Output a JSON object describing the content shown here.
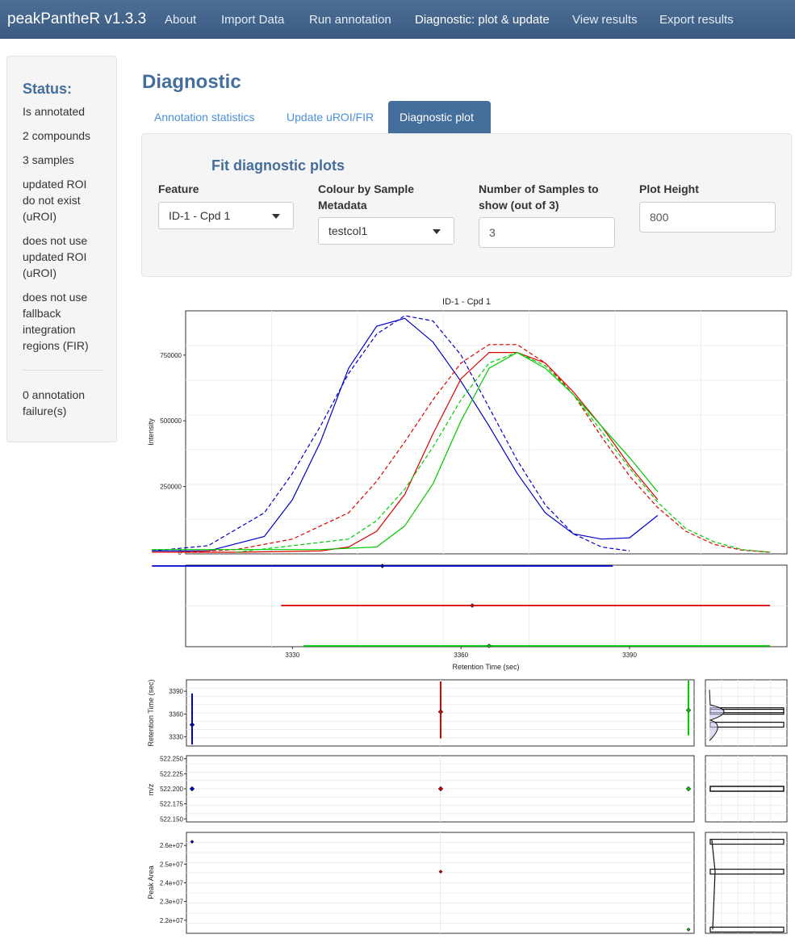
{
  "navbar": {
    "brand": "peakPantheR v1.3.3",
    "items": [
      {
        "label": "About"
      },
      {
        "label": "Import Data"
      },
      {
        "label": "Run annotation"
      },
      {
        "label": "Diagnostic: plot & update"
      },
      {
        "label": "View results"
      },
      {
        "label": "Export results"
      }
    ],
    "active": "Diagnostic: plot & update"
  },
  "sidebar": {
    "title": "Status:",
    "lines": [
      "Is annotated",
      "2 compounds",
      "3 samples",
      "updated ROI do not exist (uROI)",
      "does not use updated ROI (uROI)",
      "does not use fallback integration regions (FIR)",
      "0 annotation failure(s)"
    ]
  },
  "main": {
    "title": "Diagnostic",
    "tabs": [
      {
        "label": "Annotation statistics"
      },
      {
        "label": "Update uROI/FIR"
      },
      {
        "label": "Diagnostic plot"
      }
    ],
    "active_tab": "Diagnostic plot",
    "panel": {
      "title": "Fit diagnostic plots",
      "feature": {
        "label": "Feature",
        "value": "ID-1 - Cpd 1"
      },
      "colour": {
        "label": "Colour by Sample Metadata",
        "value": "testcol1"
      },
      "nsamples": {
        "label": "Number of Samples to show (out of 3)",
        "value": "3"
      },
      "height": {
        "label": "Plot Height",
        "value": "800"
      }
    }
  },
  "colors": {
    "accent": "#446e9b",
    "sample_1": "#0000cc",
    "sample_2": "#dd0000",
    "sample_3": "#00cc00"
  },
  "chart_data": [
    {
      "type": "line",
      "title": "ID-1 - Cpd 1",
      "xlabel": "",
      "ylabel": "Intensity",
      "ylim": [
        0,
        900000
      ],
      "yticks": [
        "0",
        "250000",
        "500000",
        "750000"
      ],
      "ytick_values": [
        0,
        250000,
        500000,
        750000
      ],
      "series": [
        {
          "color": "#0000cc",
          "line": "solid",
          "x": [
            3305,
            3315,
            3325,
            3330,
            3335,
            3340,
            3345,
            3350,
            3355,
            3360,
            3365,
            3370,
            3375,
            3380,
            3385,
            3390,
            3395
          ],
          "y": [
            5000,
            5000,
            60000,
            200000,
            420000,
            700000,
            860000,
            890000,
            800000,
            650000,
            480000,
            300000,
            150000,
            70000,
            50000,
            55000,
            140000
          ]
        },
        {
          "color": "#0000cc",
          "line": "dashed",
          "x": [
            3305,
            3315,
            3325,
            3330,
            3335,
            3340,
            3345,
            3350,
            3355,
            3360,
            3365,
            3370,
            3375,
            3380,
            3385,
            3390
          ],
          "y": [
            5000,
            25000,
            150000,
            300000,
            480000,
            680000,
            830000,
            900000,
            880000,
            750000,
            550000,
            350000,
            180000,
            70000,
            20000,
            5000
          ]
        },
        {
          "color": "#dd0000",
          "line": "solid",
          "x": [
            3305,
            3320,
            3335,
            3340,
            3345,
            3350,
            3355,
            3360,
            3365,
            3370,
            3375,
            3380,
            3385,
            3390,
            3395
          ],
          "y": [
            0,
            0,
            5000,
            20000,
            80000,
            220000,
            450000,
            660000,
            760000,
            760000,
            720000,
            610000,
            480000,
            330000,
            200000
          ]
        },
        {
          "color": "#dd0000",
          "line": "dashed",
          "x": [
            3310,
            3320,
            3330,
            3340,
            3345,
            3350,
            3355,
            3360,
            3365,
            3370,
            3375,
            3380,
            3385,
            3390,
            3395,
            3400,
            3405,
            3410,
            3415
          ],
          "y": [
            0,
            10000,
            50000,
            150000,
            270000,
            420000,
            580000,
            720000,
            790000,
            790000,
            720000,
            600000,
            440000,
            290000,
            170000,
            80000,
            30000,
            8000,
            0
          ]
        },
        {
          "color": "#00cc00",
          "line": "solid",
          "x": [
            3305,
            3335,
            3345,
            3350,
            3355,
            3360,
            3365,
            3370,
            3375,
            3380,
            3385,
            3390,
            3395
          ],
          "y": [
            10000,
            10000,
            20000,
            100000,
            260000,
            500000,
            700000,
            760000,
            700000,
            600000,
            480000,
            360000,
            230000
          ]
        },
        {
          "color": "#00cc00",
          "line": "dashed",
          "x": [
            3320,
            3340,
            3345,
            3350,
            3355,
            3360,
            3365,
            3370,
            3375,
            3380,
            3385,
            3390,
            3395,
            3400,
            3405,
            3410,
            3415
          ],
          "y": [
            0,
            50000,
            120000,
            240000,
            400000,
            580000,
            720000,
            760000,
            710000,
            600000,
            460000,
            320000,
            190000,
            90000,
            40000,
            10000,
            0
          ]
        }
      ]
    },
    {
      "type": "scatter",
      "xlabel": "Retention Time (sec)",
      "xlim": [
        3311,
        3418
      ],
      "xticks": [
        "3330",
        "3360",
        "3390"
      ],
      "xtick_values": [
        3330,
        3360,
        3390
      ],
      "series": [
        {
          "color": "#0000cc",
          "x": 3346,
          "xmin": 3305,
          "xmax": 3387
        },
        {
          "color": "#dd0000",
          "x": 3362,
          "xmin": 3328,
          "xmax": 3415
        },
        {
          "color": "#00cc00",
          "x": 3365,
          "xmin": 3332,
          "xmax": 3415
        }
      ]
    },
    {
      "type": "scatter",
      "ylabel": "Retention Time (sec)",
      "ylim": [
        3318,
        3405
      ],
      "yticks": [
        "3390",
        "3360",
        "3330"
      ],
      "ytick_values": [
        3390,
        3360,
        3330
      ],
      "points": [
        {
          "color": "#0000cc",
          "sample": 1,
          "y": 3346,
          "ymin": 3320,
          "ymax": 3387
        },
        {
          "color": "#dd0000",
          "sample": 2,
          "y": 3363,
          "ymin": 3328,
          "ymax": 3403
        },
        {
          "color": "#00cc00",
          "sample": 3,
          "y": 3365,
          "ymin": 3332,
          "ymax": 3404
        }
      ]
    },
    {
      "type": "scatter",
      "ylabel": "m/z",
      "ylim": [
        522.145,
        522.255
      ],
      "yticks": [
        "522.250",
        "522.225",
        "522.200",
        "522.175",
        "522.150"
      ],
      "ytick_values": [
        522.25,
        522.225,
        522.2,
        522.175,
        522.15
      ],
      "points": [
        {
          "color": "#0000cc",
          "sample": 1,
          "y": 522.2
        },
        {
          "color": "#dd0000",
          "sample": 2,
          "y": 522.2
        },
        {
          "color": "#00cc00",
          "sample": 3,
          "y": 522.2
        }
      ]
    },
    {
      "type": "scatter",
      "ylabel": "Peak Area",
      "ylim": [
        21300000,
        26700000
      ],
      "yticks": [
        "2.6e+07",
        "2.5e+07",
        "2.4e+07",
        "2.3e+07",
        "2.2e+07"
      ],
      "ytick_values": [
        26000000,
        25000000,
        24000000,
        23000000,
        22000000
      ],
      "points": [
        {
          "color": "#0000cc",
          "sample": 1,
          "y": 26200000
        },
        {
          "color": "#dd0000",
          "sample": 2,
          "y": 24600000
        },
        {
          "color": "#00cc00",
          "sample": 3,
          "y": 21500000
        }
      ]
    }
  ]
}
